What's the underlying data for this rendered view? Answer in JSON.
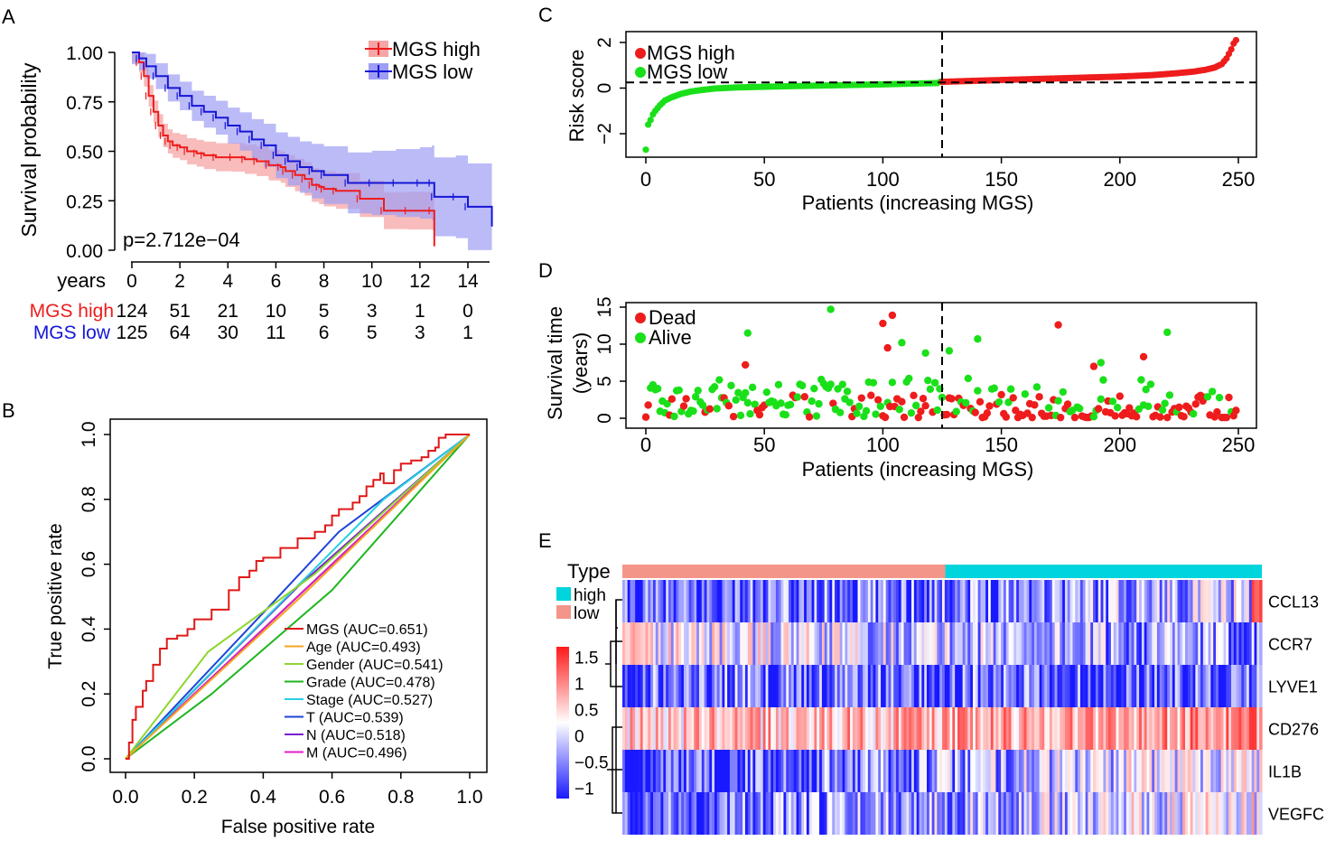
{
  "panel_labels": [
    "A",
    "B",
    "C",
    "D",
    "E"
  ],
  "colors": {
    "high": "#ee1c1c",
    "low": "#1616d6",
    "low_ci": "#9e9ef5",
    "high_ci": "#f5a5a5",
    "green": "#19e019",
    "type_low": "#f4958a",
    "type_high": "#00d4dc"
  },
  "chart_data": [
    {
      "id": "A",
      "type": "line",
      "title": "",
      "xlabel": "",
      "ylabel": "Survival probability",
      "xlim": [
        0,
        15
      ],
      "ylim": [
        0,
        1
      ],
      "yticks": [
        "0.00",
        "0.25",
        "0.50",
        "0.75",
        "1.00"
      ],
      "xticks": [
        "0",
        "2",
        "4",
        "6",
        "8",
        "10",
        "12",
        "14"
      ],
      "pvalue": "p=2.712e−04",
      "legend": [
        "MGS high",
        "MGS low"
      ],
      "series": [
        {
          "name": "MGS high",
          "x": [
            0,
            0.3,
            0.5,
            0.7,
            0.9,
            1.1,
            1.3,
            1.5,
            1.7,
            2.0,
            2.3,
            2.7,
            3.0,
            3.5,
            4.2,
            4.7,
            5.2,
            5.7,
            6.2,
            6.4,
            6.8,
            7.2,
            7.5,
            7.8,
            8.0,
            8.5,
            9.5,
            10.5,
            11.5,
            12.5,
            12.6
          ],
          "y": [
            1.0,
            0.95,
            0.88,
            0.78,
            0.7,
            0.63,
            0.58,
            0.55,
            0.53,
            0.52,
            0.5,
            0.49,
            0.48,
            0.47,
            0.47,
            0.46,
            0.45,
            0.43,
            0.42,
            0.4,
            0.38,
            0.36,
            0.33,
            0.32,
            0.31,
            0.3,
            0.26,
            0.2,
            0.2,
            0.2,
            0.02
          ]
        },
        {
          "name": "MGS low",
          "x": [
            0,
            0.3,
            0.6,
            1.0,
            1.5,
            2.0,
            2.5,
            3.0,
            3.5,
            4.0,
            4.5,
            5.0,
            5.5,
            6.0,
            6.5,
            7.0,
            7.5,
            8.0,
            9.0,
            10.0,
            11.0,
            12.0,
            12.5,
            12.6,
            13.5,
            14.0,
            15.0
          ],
          "y": [
            1.0,
            0.97,
            0.93,
            0.88,
            0.82,
            0.78,
            0.73,
            0.7,
            0.67,
            0.63,
            0.6,
            0.56,
            0.53,
            0.48,
            0.45,
            0.42,
            0.4,
            0.38,
            0.34,
            0.34,
            0.34,
            0.34,
            0.34,
            0.27,
            0.27,
            0.22,
            0.12
          ]
        }
      ],
      "risk_table": {
        "header": "years",
        "rows": [
          {
            "label": "MGS high",
            "values": [
              "124",
              "51",
              "21",
              "10",
              "5",
              "3",
              "1",
              "0"
            ]
          },
          {
            "label": "MGS low",
            "values": [
              "125",
              "64",
              "30",
              "11",
              "6",
              "5",
              "3",
              "1"
            ]
          }
        ]
      }
    },
    {
      "id": "B",
      "type": "line",
      "title": "",
      "xlabel": "False positive rate",
      "ylabel": "True positive rate",
      "xlim": [
        0,
        1
      ],
      "ylim": [
        0,
        1
      ],
      "xticks": [
        "0.0",
        "0.2",
        "0.4",
        "0.6",
        "0.8",
        "1.0"
      ],
      "yticks": [
        "0.0",
        "0.2",
        "0.4",
        "0.6",
        "0.8",
        "1.0"
      ],
      "series": [
        {
          "name": "MGS (AUC=0.651)",
          "color": "#e01818",
          "x": [
            0,
            0.01,
            0.02,
            0.03,
            0.05,
            0.06,
            0.08,
            0.1,
            0.12,
            0.15,
            0.18,
            0.2,
            0.25,
            0.3,
            0.33,
            0.36,
            0.38,
            0.4,
            0.45,
            0.5,
            0.55,
            0.58,
            0.6,
            0.62,
            0.66,
            0.68,
            0.7,
            0.72,
            0.74,
            0.75,
            0.78,
            0.8,
            0.83,
            0.86,
            0.88,
            0.9,
            0.91,
            0.93,
            0.96,
            1.0
          ],
          "y": [
            0,
            0.05,
            0.12,
            0.16,
            0.21,
            0.24,
            0.29,
            0.34,
            0.37,
            0.38,
            0.4,
            0.43,
            0.46,
            0.52,
            0.56,
            0.58,
            0.61,
            0.62,
            0.65,
            0.68,
            0.7,
            0.72,
            0.75,
            0.77,
            0.79,
            0.81,
            0.84,
            0.86,
            0.88,
            0.85,
            0.89,
            0.91,
            0.92,
            0.93,
            0.95,
            0.96,
            0.99,
            1.0,
            1.0,
            1.0
          ]
        },
        {
          "name": "Age (AUC=0.493)",
          "color": "#f5a623",
          "x": [
            0,
            0.5,
            1.0
          ],
          "y": [
            0,
            0.49,
            1.0
          ]
        },
        {
          "name": "Gender (AUC=0.541)",
          "color": "#8fd630",
          "x": [
            0,
            0.24,
            0.55,
            1.0
          ],
          "y": [
            0,
            0.33,
            0.57,
            1.0
          ]
        },
        {
          "name": "Grade (AUC=0.478)",
          "color": "#1fb51f",
          "x": [
            0,
            0.25,
            0.6,
            1.0
          ],
          "y": [
            0,
            0.2,
            0.52,
            1.0
          ]
        },
        {
          "name": "Stage (AUC=0.527)",
          "color": "#26d0e0",
          "x": [
            0,
            0.45,
            0.75,
            1.0
          ],
          "y": [
            0,
            0.48,
            0.8,
            1.0
          ]
        },
        {
          "name": "T (AUC=0.539)",
          "color": "#1d44d8",
          "x": [
            0,
            0.4,
            0.62,
            1.0
          ],
          "y": [
            0,
            0.45,
            0.7,
            1.0
          ]
        },
        {
          "name": "N (AUC=0.518)",
          "color": "#7a1fd0",
          "x": [
            0,
            0.5,
            1.0
          ],
          "y": [
            0,
            0.53,
            1.0
          ]
        },
        {
          "name": "M (AUC=0.496)",
          "color": "#e01ec8",
          "x": [
            0,
            0.5,
            1.0
          ],
          "y": [
            0,
            0.5,
            1.0
          ]
        }
      ]
    },
    {
      "id": "C",
      "type": "scatter",
      "title": "",
      "xlabel": "Patients (increasing MGS)",
      "ylabel": "Risk score",
      "xlim": [
        -5,
        255
      ],
      "ylim": [
        -3,
        2.3
      ],
      "xticks": [
        "0",
        "50",
        "100",
        "150",
        "200",
        "250"
      ],
      "yticks": [
        "−2",
        "0",
        "2"
      ],
      "legend": [
        "MGS high",
        "MGS low"
      ],
      "cutoff_index": 125,
      "cutoff_value": 0.25,
      "n_patients": 250,
      "anchor_x": [
        1,
        2,
        3,
        4,
        5,
        7,
        9,
        12,
        16,
        20,
        25,
        30,
        40,
        60,
        80,
        100,
        124,
        125,
        140,
        160,
        180,
        200,
        215,
        225,
        232,
        237,
        241,
        244,
        246,
        248,
        249,
        250
      ],
      "anchor_y": [
        -2.7,
        -1.6,
        -1.4,
        -1.15,
        -1.0,
        -0.75,
        -0.55,
        -0.4,
        -0.25,
        -0.15,
        -0.08,
        -0.02,
        0.03,
        0.08,
        0.12,
        0.16,
        0.22,
        0.27,
        0.32,
        0.38,
        0.44,
        0.5,
        0.57,
        0.65,
        0.72,
        0.8,
        0.9,
        1.05,
        1.3,
        1.7,
        1.95,
        2.1
      ]
    },
    {
      "id": "D",
      "type": "scatter",
      "title": "",
      "xlabel": "Patients (increasing MGS)",
      "ylabel": "Survival time (years)",
      "ylabel_lines": [
        "Survival time",
        "(years)"
      ],
      "xlim": [
        -5,
        255
      ],
      "ylim": [
        0,
        15.5
      ],
      "xticks": [
        "0",
        "50",
        "100",
        "150",
        "200",
        "250"
      ],
      "yticks": [
        "0",
        "5",
        "10",
        "15"
      ],
      "legend": [
        "Dead",
        "Alive"
      ],
      "cutoff_index": 125,
      "highlights": [
        {
          "x": 78,
          "y": 14.7,
          "status": "Alive"
        },
        {
          "x": 104,
          "y": 13.9,
          "status": "Dead"
        },
        {
          "x": 100,
          "y": 12.8,
          "status": "Dead"
        },
        {
          "x": 174,
          "y": 12.6,
          "status": "Dead"
        },
        {
          "x": 43,
          "y": 11.5,
          "status": "Alive"
        },
        {
          "x": 220,
          "y": 11.6,
          "status": "Alive"
        },
        {
          "x": 140,
          "y": 10.7,
          "status": "Alive"
        },
        {
          "x": 108,
          "y": 10.2,
          "status": "Alive"
        },
        {
          "x": 102,
          "y": 9.5,
          "status": "Dead"
        },
        {
          "x": 128,
          "y": 9.1,
          "status": "Alive"
        },
        {
          "x": 210,
          "y": 8.3,
          "status": "Dead"
        },
        {
          "x": 118,
          "y": 8.8,
          "status": "Alive"
        },
        {
          "x": 42,
          "y": 7.2,
          "status": "Dead"
        },
        {
          "x": 192,
          "y": 7.5,
          "status": "Alive"
        },
        {
          "x": 189,
          "y": 7.0,
          "status": "Dead"
        }
      ]
    },
    {
      "id": "E",
      "type": "heatmap",
      "title": "",
      "xlabel": "",
      "ylabel": "",
      "annotation_label": "Type",
      "type_split": 0.505,
      "legend": [
        "high",
        "low"
      ],
      "color_scale": {
        "ticks": [
          "1.5",
          "1",
          "0.5",
          "0",
          "−0.5",
          "−1"
        ],
        "min": -1.2,
        "max": 1.7
      },
      "n_columns": 250,
      "rows": [
        {
          "gene": "CCL13",
          "base": -0.6,
          "trend": 0.5
        },
        {
          "gene": "CCR7",
          "base": -0.3,
          "trend": -0.5
        },
        {
          "gene": "LYVE1",
          "base": -0.8,
          "trend": -0.1
        },
        {
          "gene": "CD276",
          "base": 0.6,
          "trend": 0.3
        },
        {
          "gene": "IL1B",
          "base": -0.5,
          "trend": 0.9
        },
        {
          "gene": "VEGFC",
          "base": -0.4,
          "trend": 0.7
        }
      ]
    }
  ]
}
